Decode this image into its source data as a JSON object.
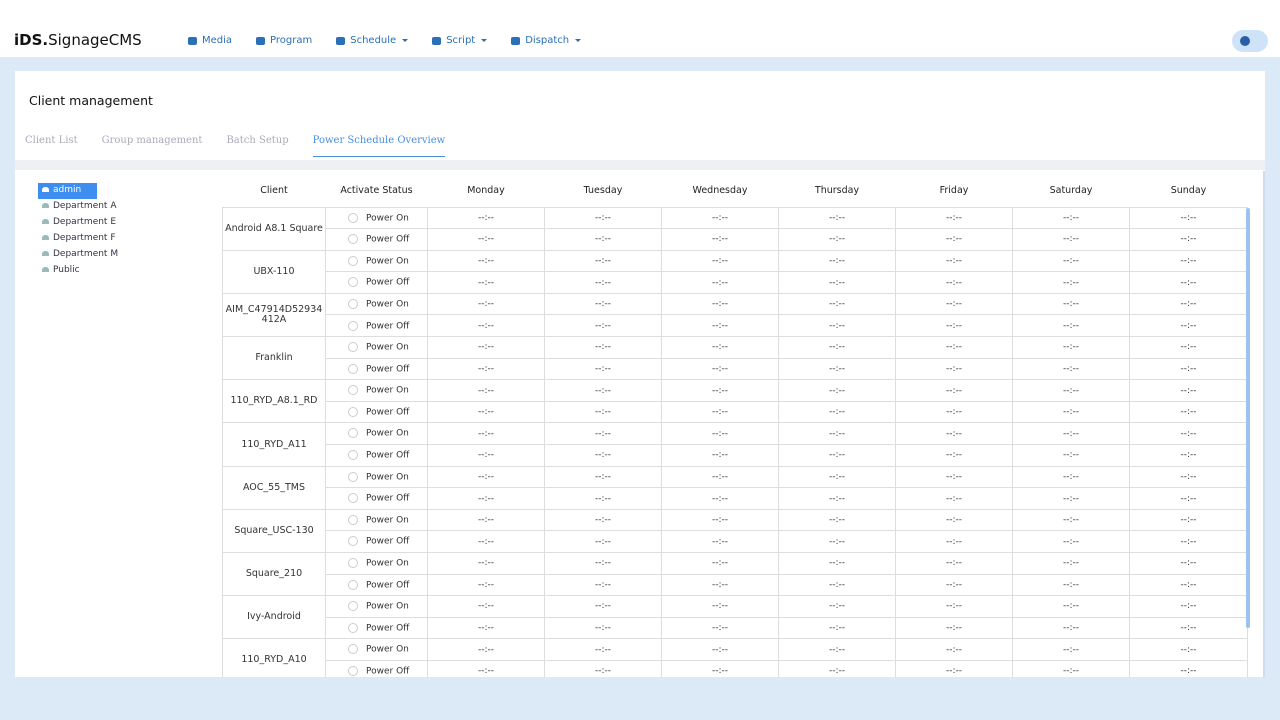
{
  "header": {
    "brand_bold": "iDS.",
    "brand": "SignageCMS",
    "nav": [
      "Media",
      "Program",
      "Schedule",
      "Script",
      "Dispatch"
    ]
  },
  "page": {
    "title": "Client management",
    "tabs": [
      "Client List",
      "Group management",
      "Batch Setup",
      "Power Schedule Overview"
    ]
  },
  "tree": [
    "admin",
    "Department A",
    "Department E",
    "Department F",
    "Department M",
    "Public"
  ],
  "table": {
    "columns": [
      "Client",
      "Activate Status",
      "Monday",
      "Tuesday",
      "Wednesday",
      "Thursday",
      "Friday",
      "Saturday",
      "Sunday"
    ],
    "status_labels": [
      "Power On",
      "Power Off"
    ],
    "rows": [
      {
        "client": "Android A8.1 Square",
        "times": [
          [
            "--:--",
            "--:--",
            "--:--",
            "--:--",
            "--:--",
            "--:--",
            "--:--"
          ],
          [
            "--:--",
            "--:--",
            "--:--",
            "--:--",
            "--:--",
            "--:--",
            "--:--"
          ]
        ]
      },
      {
        "client": "UBX-110",
        "times": [
          [
            "--:--",
            "--:--",
            "--:--",
            "--:--",
            "--:--",
            "--:--",
            "--:--"
          ],
          [
            "--:--",
            "--:--",
            "--:--",
            "--:--",
            "--:--",
            "--:--",
            "--:--"
          ]
        ]
      },
      {
        "client": "AIM_C47914D52934412A",
        "times": [
          [
            "--:--",
            "--:--",
            "--:--",
            "--:--",
            "--:--",
            "--:--",
            "--:--"
          ],
          [
            "--:--",
            "--:--",
            "--:--",
            "--:--",
            "--:--",
            "--:--",
            "--:--"
          ]
        ]
      },
      {
        "client": "Franklin",
        "times": [
          [
            "--:--",
            "--:--",
            "--:--",
            "--:--",
            "--:--",
            "--:--",
            "--:--"
          ],
          [
            "--:--",
            "--:--",
            "--:--",
            "--:--",
            "--:--",
            "--:--",
            "--:--"
          ]
        ]
      },
      {
        "client": "110_RYD_A8.1_RD",
        "times": [
          [
            "--:--",
            "--:--",
            "--:--",
            "--:--",
            "--:--",
            "--:--",
            "--:--"
          ],
          [
            "--:--",
            "--:--",
            "--:--",
            "--:--",
            "--:--",
            "--:--",
            "--:--"
          ]
        ]
      },
      {
        "client": "110_RYD_A11",
        "times": [
          [
            "--:--",
            "--:--",
            "--:--",
            "--:--",
            "--:--",
            "--:--",
            "--:--"
          ],
          [
            "--:--",
            "--:--",
            "--:--",
            "--:--",
            "--:--",
            "--:--",
            "--:--"
          ]
        ]
      },
      {
        "client": "AOC_55_TMS",
        "times": [
          [
            "--:--",
            "--:--",
            "--:--",
            "--:--",
            "--:--",
            "--:--",
            "--:--"
          ],
          [
            "--:--",
            "--:--",
            "--:--",
            "--:--",
            "--:--",
            "--:--",
            "--:--"
          ]
        ]
      },
      {
        "client": "Square_USC-130",
        "times": [
          [
            "--:--",
            "--:--",
            "--:--",
            "--:--",
            "--:--",
            "--:--",
            "--:--"
          ],
          [
            "--:--",
            "--:--",
            "--:--",
            "--:--",
            "--:--",
            "--:--",
            "--:--"
          ]
        ]
      },
      {
        "client": "Square_210",
        "times": [
          [
            "--:--",
            "--:--",
            "--:--",
            "--:--",
            "--:--",
            "--:--",
            "--:--"
          ],
          [
            "--:--",
            "--:--",
            "--:--",
            "--:--",
            "--:--",
            "--:--",
            "--:--"
          ]
        ]
      },
      {
        "client": "Ivy-Android",
        "times": [
          [
            "--:--",
            "--:--",
            "--:--",
            "--:--",
            "--:--",
            "--:--",
            "--:--"
          ],
          [
            "--:--",
            "--:--",
            "--:--",
            "--:--",
            "--:--",
            "--:--",
            "--:--"
          ]
        ]
      },
      {
        "client": "110_RYD_A10",
        "times": [
          [
            "--:--",
            "--:--",
            "--:--",
            "--:--",
            "--:--",
            "--:--",
            "--:--"
          ],
          [
            "--:--",
            "--:--",
            "--:--",
            "--:--",
            "--:--",
            "--:--",
            "--:--"
          ]
        ]
      }
    ]
  }
}
